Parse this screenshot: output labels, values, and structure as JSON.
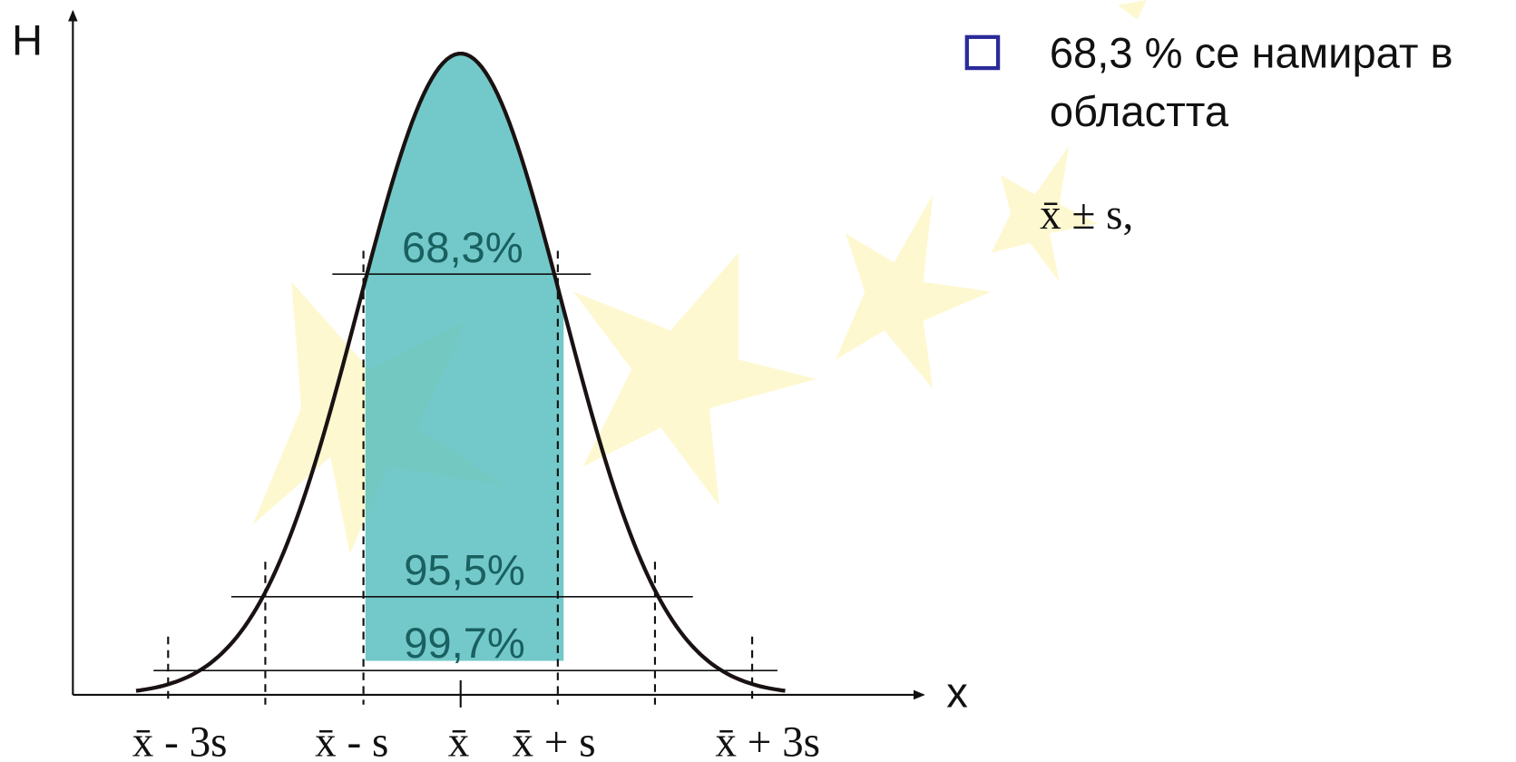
{
  "axis": {
    "y_label": "H",
    "x_label": "x",
    "x_ticks": [
      "x̄ - 3s",
      "x̄ - s",
      "x̄",
      "x̄ + s",
      "x̄ + 3s"
    ]
  },
  "bands": [
    "68,3%",
    "95,5%",
    "99,7%"
  ],
  "bullet": {
    "lines": [
      "68,3 % се намират в",
      "областта"
    ],
    "formula": "x̄ ± s,"
  }
}
